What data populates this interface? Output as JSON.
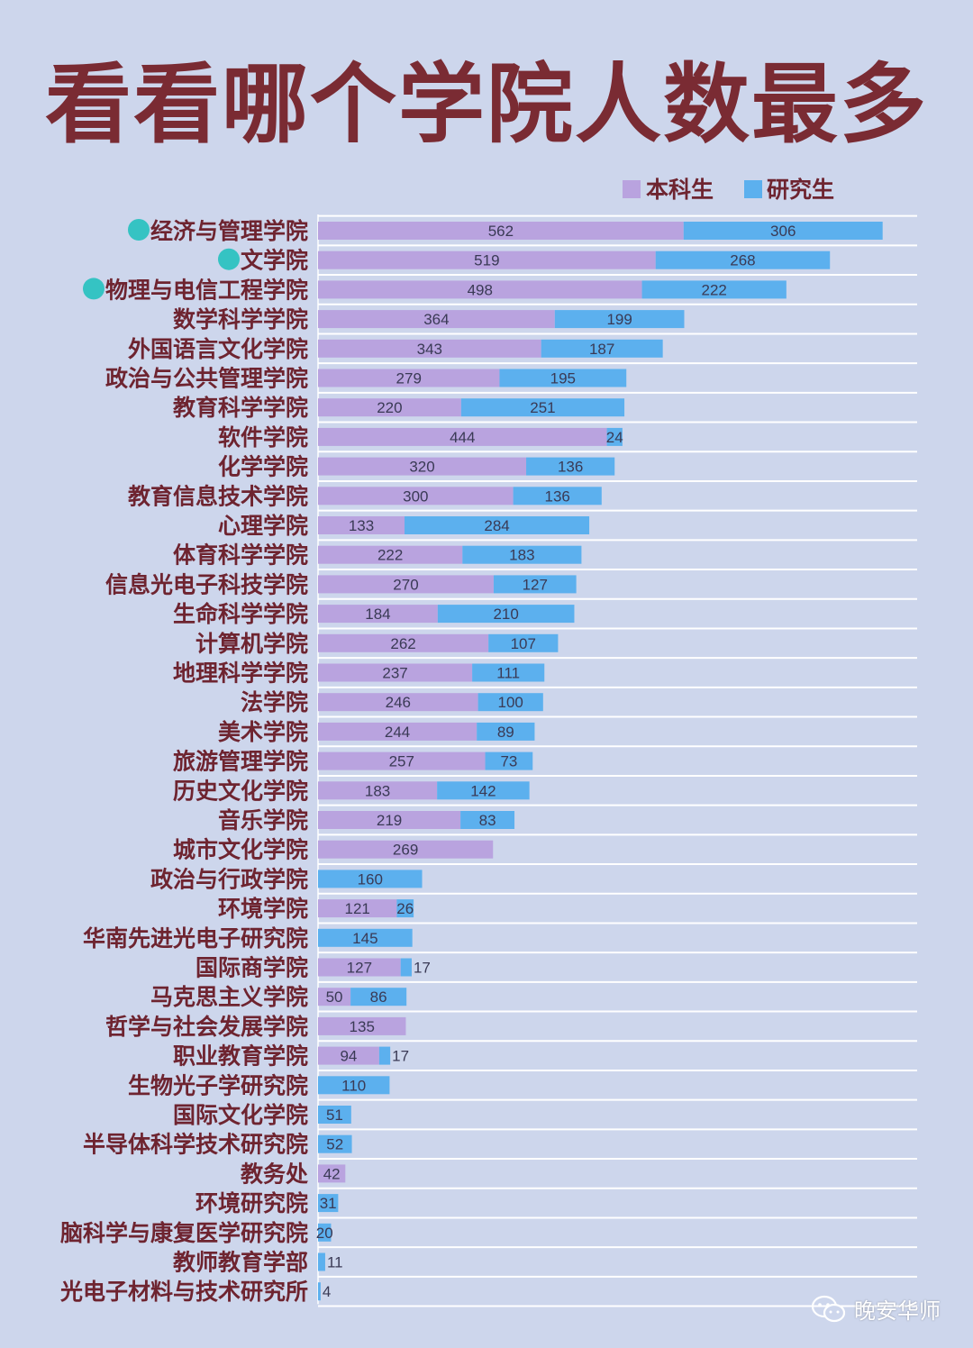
{
  "title": "看看哪个学院人数最多",
  "watermark": {
    "text": "晚安华师",
    "icon": "wechat-icon"
  },
  "colors": {
    "undergrad": "#b9a3df",
    "grad": "#5cb0ee",
    "highlight_dot": "#35c3c3",
    "label": "#6e2430",
    "gridline": "#ffffff"
  },
  "chart_data": {
    "type": "bar",
    "orientation": "horizontal",
    "stacked": true,
    "legend": {
      "position": "top-right",
      "entries": [
        "本科生",
        "研究生"
      ]
    },
    "categories": [
      "经济与管理学院",
      "文学院",
      "物理与电信工程学院",
      "数学科学学院",
      "外国语言文化学院",
      "政治与公共管理学院",
      "教育科学学院",
      "软件学院",
      "化学学院",
      "教育信息技术学院",
      "心理学院",
      "体育科学学院",
      "信息光电子科技学院",
      "生命科学学院",
      "计算机学院",
      "地理科学学院",
      "法学院",
      "美术学院",
      "旅游管理学院",
      "历史文化学院",
      "音乐学院",
      "城市文化学院",
      "政治与行政学院",
      "环境学院",
      "华南先进光电子研究院",
      "国际商学院",
      "马克思主义学院",
      "哲学与社会发展学院",
      "职业教育学院",
      "生物光子学研究院",
      "国际文化学院",
      "半导体科学技术研究院",
      "教务处",
      "环境研究院",
      "脑科学与康复医学研究院",
      "教师教育学部",
      "光电子材料与技术研究所"
    ],
    "highlighted": [
      "经济与管理学院",
      "文学院",
      "物理与电信工程学院"
    ],
    "series": [
      {
        "name": "本科生",
        "values": [
          562,
          519,
          498,
          364,
          343,
          279,
          220,
          444,
          320,
          300,
          133,
          222,
          270,
          184,
          262,
          237,
          246,
          244,
          257,
          183,
          219,
          269,
          0,
          121,
          0,
          127,
          50,
          135,
          94,
          0,
          0,
          0,
          42,
          0,
          0,
          0,
          0
        ]
      },
      {
        "name": "研究生",
        "values": [
          306,
          268,
          222,
          199,
          187,
          195,
          251,
          24,
          136,
          136,
          284,
          183,
          127,
          210,
          107,
          111,
          100,
          89,
          73,
          142,
          83,
          0,
          160,
          26,
          145,
          17,
          86,
          0,
          17,
          110,
          51,
          52,
          0,
          31,
          20,
          11,
          4
        ]
      }
    ],
    "grid": true
  }
}
